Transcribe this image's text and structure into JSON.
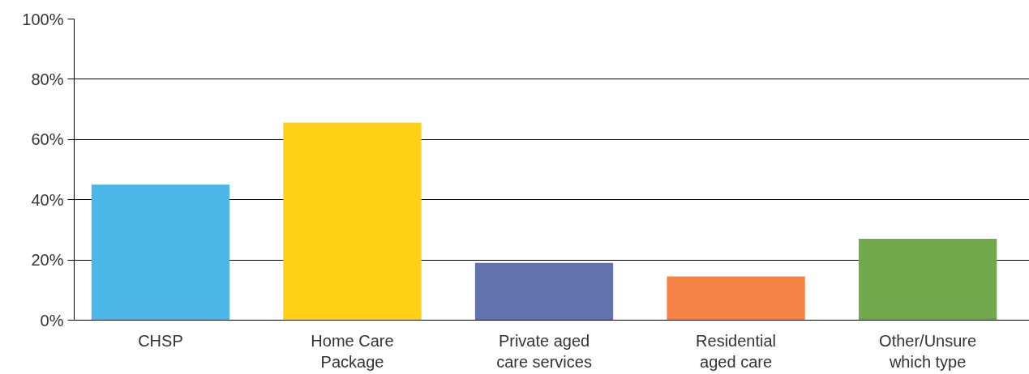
{
  "chart_data": {
    "type": "bar",
    "categories": [
      "CHSP",
      "Home Care\nPackage",
      "Private aged\ncare services",
      "Residential\naged care",
      "Other/Unsure\nwhich type"
    ],
    "values": [
      45,
      65.6,
      19,
      14.5,
      27
    ],
    "colors": [
      "#4db8e8",
      "#fcd116",
      "#6272ad",
      "#f58345",
      "#72a94c"
    ],
    "ylim": [
      0,
      100
    ],
    "yticks": [
      {
        "value": 0,
        "label": "0%"
      },
      {
        "value": 20,
        "label": "20%"
      },
      {
        "value": 40,
        "label": "40%"
      },
      {
        "value": 60,
        "label": "60%"
      },
      {
        "value": 80,
        "label": "80%"
      },
      {
        "value": 100,
        "label": "100%"
      }
    ],
    "grid": "y"
  }
}
